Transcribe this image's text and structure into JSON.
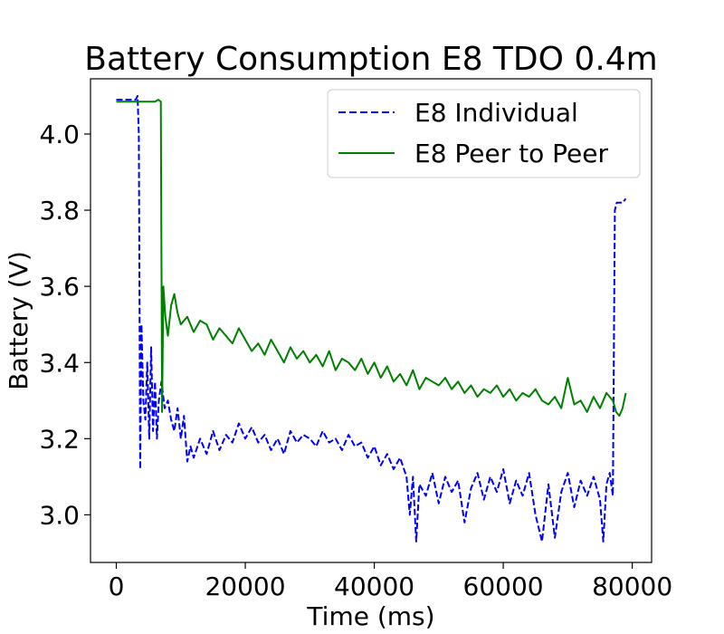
{
  "chart_data": {
    "type": "line",
    "title": "Battery Consumption E8 TDO 0.4m",
    "xlabel": "Time (ms)",
    "ylabel": "Battery (V)",
    "xlim": [
      -4000,
      83000
    ],
    "ylim": [
      2.875,
      4.145
    ],
    "xticks": [
      0,
      20000,
      40000,
      60000,
      80000
    ],
    "yticks": [
      3.0,
      3.2,
      3.4,
      3.6,
      3.8,
      4.0
    ],
    "xtick_labels": [
      "0",
      "20000",
      "40000",
      "60000",
      "80000"
    ],
    "ytick_labels": [
      "3.0",
      "3.2",
      "3.4",
      "3.6",
      "3.8",
      "4.0"
    ],
    "legend_position": "top-right",
    "series": [
      {
        "name": "E8 Individual",
        "color": "#0000ff",
        "style": "dashed",
        "points": [
          [
            0,
            4.09
          ],
          [
            3000,
            4.09
          ],
          [
            3300,
            4.1
          ],
          [
            3500,
            4.0
          ],
          [
            3700,
            3.12
          ],
          [
            3900,
            3.5
          ],
          [
            4200,
            3.3
          ],
          [
            4500,
            3.25
          ],
          [
            4800,
            3.4
          ],
          [
            5100,
            3.2
          ],
          [
            5400,
            3.44
          ],
          [
            5700,
            3.22
          ],
          [
            6000,
            3.35
          ],
          [
            6300,
            3.2
          ],
          [
            6600,
            3.3
          ],
          [
            7000,
            3.35
          ],
          [
            7500,
            3.28
          ],
          [
            8000,
            3.3
          ],
          [
            8500,
            3.25
          ],
          [
            9000,
            3.22
          ],
          [
            9500,
            3.28
          ],
          [
            10000,
            3.2
          ],
          [
            10500,
            3.26
          ],
          [
            11000,
            3.14
          ],
          [
            11500,
            3.18
          ],
          [
            12000,
            3.15
          ],
          [
            13000,
            3.2
          ],
          [
            14000,
            3.16
          ],
          [
            15000,
            3.22
          ],
          [
            16000,
            3.17
          ],
          [
            17000,
            3.21
          ],
          [
            18000,
            3.19
          ],
          [
            19000,
            3.24
          ],
          [
            20000,
            3.2
          ],
          [
            21000,
            3.23
          ],
          [
            22000,
            3.19
          ],
          [
            23000,
            3.21
          ],
          [
            24000,
            3.17
          ],
          [
            25000,
            3.2
          ],
          [
            26000,
            3.16
          ],
          [
            27000,
            3.22
          ],
          [
            28000,
            3.19
          ],
          [
            29000,
            3.21
          ],
          [
            30000,
            3.2
          ],
          [
            31000,
            3.18
          ],
          [
            32000,
            3.22
          ],
          [
            33000,
            3.19
          ],
          [
            34000,
            3.2
          ],
          [
            35000,
            3.17
          ],
          [
            36000,
            3.21
          ],
          [
            37000,
            3.18
          ],
          [
            38000,
            3.19
          ],
          [
            39000,
            3.15
          ],
          [
            40000,
            3.18
          ],
          [
            41000,
            3.13
          ],
          [
            42000,
            3.16
          ],
          [
            43000,
            3.12
          ],
          [
            44000,
            3.15
          ],
          [
            45000,
            3.1
          ],
          [
            45500,
            3.0
          ],
          [
            46000,
            3.1
          ],
          [
            46500,
            2.93
          ],
          [
            47000,
            3.08
          ],
          [
            48000,
            3.05
          ],
          [
            49000,
            3.11
          ],
          [
            50000,
            3.03
          ],
          [
            51000,
            3.1
          ],
          [
            52000,
            3.06
          ],
          [
            53000,
            3.09
          ],
          [
            54000,
            2.98
          ],
          [
            55000,
            3.07
          ],
          [
            56000,
            3.11
          ],
          [
            57000,
            3.04
          ],
          [
            58000,
            3.1
          ],
          [
            59000,
            3.06
          ],
          [
            60000,
            3.12
          ],
          [
            61000,
            3.03
          ],
          [
            62000,
            3.09
          ],
          [
            63000,
            3.05
          ],
          [
            64000,
            3.11
          ],
          [
            65000,
            3.0
          ],
          [
            66000,
            2.93
          ],
          [
            67000,
            3.08
          ],
          [
            68000,
            2.94
          ],
          [
            69000,
            3.06
          ],
          [
            70000,
            3.11
          ],
          [
            71000,
            3.02
          ],
          [
            72000,
            3.09
          ],
          [
            73000,
            3.05
          ],
          [
            74000,
            3.1
          ],
          [
            75000,
            3.04
          ],
          [
            75500,
            2.93
          ],
          [
            76000,
            3.08
          ],
          [
            76500,
            3.11
          ],
          [
            77000,
            3.05
          ],
          [
            77300,
            3.8
          ],
          [
            77600,
            3.82
          ],
          [
            78500,
            3.82
          ],
          [
            79000,
            3.83
          ]
        ]
      },
      {
        "name": "E8 Peer to Peer",
        "color": "#008000",
        "style": "solid",
        "points": [
          [
            0,
            4.085
          ],
          [
            3000,
            4.085
          ],
          [
            6000,
            4.085
          ],
          [
            6500,
            4.09
          ],
          [
            6900,
            4.085
          ],
          [
            7100,
            3.27
          ],
          [
            7300,
            3.6
          ],
          [
            7600,
            3.52
          ],
          [
            8000,
            3.47
          ],
          [
            8500,
            3.55
          ],
          [
            9000,
            3.58
          ],
          [
            9500,
            3.53
          ],
          [
            10000,
            3.5
          ],
          [
            11000,
            3.52
          ],
          [
            12000,
            3.48
          ],
          [
            13000,
            3.51
          ],
          [
            14000,
            3.5
          ],
          [
            15000,
            3.46
          ],
          [
            16000,
            3.49
          ],
          [
            17000,
            3.47
          ],
          [
            18000,
            3.45
          ],
          [
            19000,
            3.49
          ],
          [
            20000,
            3.46
          ],
          [
            21000,
            3.43
          ],
          [
            22000,
            3.45
          ],
          [
            23000,
            3.42
          ],
          [
            24000,
            3.46
          ],
          [
            25000,
            3.43
          ],
          [
            26000,
            3.4
          ],
          [
            27000,
            3.44
          ],
          [
            28000,
            3.41
          ],
          [
            29000,
            3.43
          ],
          [
            30000,
            3.4
          ],
          [
            31000,
            3.42
          ],
          [
            32000,
            3.39
          ],
          [
            33000,
            3.43
          ],
          [
            34000,
            3.38
          ],
          [
            35000,
            3.41
          ],
          [
            36000,
            3.4
          ],
          [
            37000,
            3.38
          ],
          [
            38000,
            3.41
          ],
          [
            39000,
            3.37
          ],
          [
            40000,
            3.4
          ],
          [
            41000,
            3.36
          ],
          [
            42000,
            3.39
          ],
          [
            43000,
            3.35
          ],
          [
            44000,
            3.37
          ],
          [
            45000,
            3.34
          ],
          [
            46000,
            3.38
          ],
          [
            47000,
            3.33
          ],
          [
            48000,
            3.36
          ],
          [
            49000,
            3.35
          ],
          [
            50000,
            3.34
          ],
          [
            51000,
            3.36
          ],
          [
            52000,
            3.33
          ],
          [
            53000,
            3.35
          ],
          [
            54000,
            3.32
          ],
          [
            55000,
            3.34
          ],
          [
            56000,
            3.31
          ],
          [
            57000,
            3.33
          ],
          [
            58000,
            3.32
          ],
          [
            59000,
            3.34
          ],
          [
            60000,
            3.31
          ],
          [
            61000,
            3.33
          ],
          [
            62000,
            3.3
          ],
          [
            63000,
            3.32
          ],
          [
            64000,
            3.31
          ],
          [
            65000,
            3.33
          ],
          [
            66000,
            3.3
          ],
          [
            67000,
            3.29
          ],
          [
            68000,
            3.31
          ],
          [
            69000,
            3.28
          ],
          [
            70000,
            3.36
          ],
          [
            71000,
            3.29
          ],
          [
            72000,
            3.3
          ],
          [
            73000,
            3.27
          ],
          [
            74000,
            3.31
          ],
          [
            75000,
            3.28
          ],
          [
            76000,
            3.32
          ],
          [
            77000,
            3.3
          ],
          [
            77500,
            3.27
          ],
          [
            78000,
            3.26
          ],
          [
            78500,
            3.28
          ],
          [
            79000,
            3.32
          ]
        ]
      }
    ]
  }
}
